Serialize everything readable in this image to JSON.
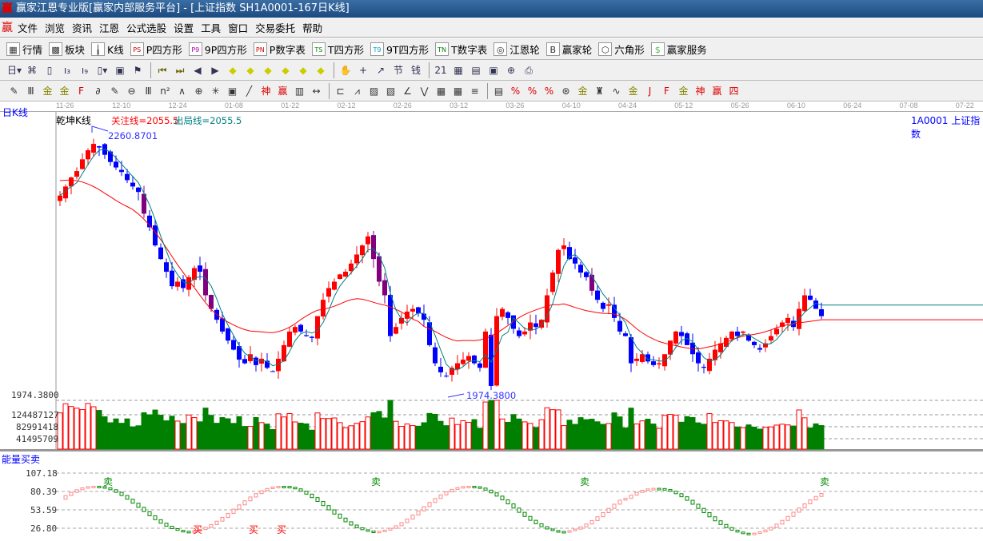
{
  "window": {
    "title": "赢家江恩专业版[赢家内部服务平台] - [上证指数  SH1A0001-167日K线]",
    "logo": "赢"
  },
  "menu": [
    "文件",
    "浏览",
    "资讯",
    "江恩",
    "公式选股",
    "设置",
    "工具",
    "窗口",
    "交易委托",
    "帮助"
  ],
  "toolbar1": [
    {
      "icon": "quote-table-icon",
      "g": "▦",
      "label": "行情"
    },
    {
      "icon": "sector-blocks-icon",
      "g": "▩",
      "label": "板块"
    },
    {
      "icon": "kline-icon",
      "g": "╽",
      "label": "K线"
    },
    {
      "icon": "ps-icon",
      "g": "PS",
      "label": "P四方形"
    },
    {
      "icon": "p9-icon",
      "g": "P9",
      "label": "9P四方形"
    },
    {
      "icon": "pn-icon",
      "g": "PN",
      "label": "P数字表"
    },
    {
      "icon": "ts-icon",
      "g": "TS",
      "label": "T四方形"
    },
    {
      "icon": "t9-icon",
      "g": "T9",
      "label": "9T四方形"
    },
    {
      "icon": "tn-icon",
      "g": "TN",
      "label": "T数字表"
    },
    {
      "icon": "gann-wheel-icon",
      "g": "◎",
      "label": "江恩轮"
    },
    {
      "icon": "big-wheel-icon",
      "g": "B",
      "label": "赢家轮"
    },
    {
      "icon": "hexagon-icon",
      "g": "⬡",
      "label": "六角形"
    },
    {
      "icon": "dollar-icon",
      "g": "$",
      "label": "赢家服务"
    }
  ],
  "toolbar2": [
    {
      "icon": "period-day-dropdown",
      "g": "日▾"
    },
    {
      "icon": "chart-icon",
      "g": "⌘"
    },
    {
      "icon": "clipboard-icon",
      "g": "▯"
    },
    {
      "icon": "indicator-3-icon",
      "g": "ı₃"
    },
    {
      "icon": "indicator-9-icon",
      "g": "ı₉"
    },
    {
      "icon": "candle-type-dropdown",
      "g": "▯▾"
    },
    {
      "icon": "map-icon",
      "g": "▣"
    },
    {
      "icon": "flag-icon",
      "g": "⚑"
    },
    {
      "icon": "first-icon",
      "g": "⏮"
    },
    {
      "icon": "last-icon",
      "g": "⏭"
    },
    {
      "icon": "prev-icon",
      "g": "◀"
    },
    {
      "icon": "next-icon",
      "g": "▶"
    },
    {
      "icon": "left-diamond-icon",
      "g": "◆"
    },
    {
      "icon": "right-diamond-icon",
      "g": "◆"
    },
    {
      "icon": "expand-h-icon",
      "g": "◆"
    },
    {
      "icon": "shrink-icon",
      "g": "◆"
    },
    {
      "icon": "expand-icon",
      "g": "◆"
    },
    {
      "icon": "expand-v-icon",
      "g": "◆"
    },
    {
      "icon": "hand-icon",
      "g": "✋"
    },
    {
      "icon": "crosshair-icon",
      "g": "+"
    },
    {
      "icon": "line-icon",
      "g": "↗"
    },
    {
      "icon": "pattern-icon",
      "g": "节"
    },
    {
      "icon": "money-icon",
      "g": "钱"
    },
    {
      "icon": "calendar-icon",
      "g": "21"
    },
    {
      "icon": "calculator-icon",
      "g": "▦"
    },
    {
      "icon": "notes-icon",
      "g": "▤"
    },
    {
      "icon": "save-icon",
      "g": "▣"
    },
    {
      "icon": "network-icon",
      "g": "⊕"
    },
    {
      "icon": "print-icon",
      "g": "⎙"
    }
  ],
  "toolbar3": [
    "pen-icon",
    "three-lines-icon",
    "gold-icon",
    "gold2-icon",
    "fib-icon",
    "spiral-icon",
    "pen2-icon",
    "circle-icon",
    "lines-icon",
    "n2-icon",
    "triangle-icon",
    "target-icon",
    "web-icon",
    "box-icon",
    "parallel-icon",
    "shen-icon",
    "ying-icon",
    "ruler-icon",
    "span-icon",
    "box2-icon",
    "fan-icon",
    "fan2-icon",
    "fan3-icon",
    "angle-icon",
    "zigzag-icon",
    "grid-icon",
    "grid2-icon",
    "hatch-icon",
    "bars-icon",
    "pct-line-icon",
    "percent-icon",
    "pct-lines-icon",
    "gold-circle-icon",
    "gold-lines-icon",
    "pen3-icon",
    "wave-icon",
    "gold3-icon",
    "j-angle-icon",
    "f-angle-icon",
    "gold-angle-icon",
    "shen-angle-icon",
    "ying-angle-icon",
    "si-angle-icon"
  ],
  "dates": [
    "11-26",
    "12-10",
    "12-24",
    "01-08",
    "01-22",
    "02-12",
    "02-26",
    "03-12",
    "03-26",
    "04-10",
    "04-24",
    "05-12",
    "05-26",
    "06-10",
    "06-24",
    "07-08",
    "07-22"
  ],
  "chart": {
    "period_label": "日K线",
    "indicator_name": "乾坤K线",
    "focus_line": "关注线=2055.5",
    "exit_line": "出局线=2055.5",
    "symbol": "1A0001  上证指数",
    "high_label": "2260.8701",
    "low_label": "1974.3800",
    "high": 2260.87,
    "low": 1974.38,
    "axis_price": "1974.3800",
    "vol_ticks": [
      "124487127",
      "82991418",
      "41495709"
    ],
    "closes": [
      2195,
      2205,
      2215,
      2222,
      2235,
      2245,
      2252,
      2248,
      2240,
      2232,
      2226,
      2221,
      2212,
      2205,
      2199,
      2175,
      2160,
      2140,
      2125,
      2111,
      2095,
      2100,
      2093,
      2105,
      2115,
      2111,
      2085,
      2070,
      2058,
      2045,
      2035,
      2025,
      2014,
      2010,
      2020,
      2008,
      2015,
      2005,
      2001,
      2015,
      2030,
      2045,
      2050,
      2045,
      2040,
      2038,
      2062,
      2080,
      2093,
      2100,
      2108,
      2111,
      2120,
      2130,
      2140,
      2150,
      2125,
      2100,
      2085,
      2040,
      2050,
      2060,
      2067,
      2070,
      2065,
      2058,
      2030,
      2010,
      2000,
      1996,
      2005,
      2010,
      2014,
      2018,
      2010,
      2005,
      2045,
      1985,
      2062,
      2070,
      2060,
      2048,
      2040,
      2045,
      2055,
      2050,
      2058,
      2085,
      2110,
      2135,
      2140,
      2125,
      2120,
      2110,
      2105,
      2090,
      2080,
      2070,
      2075,
      2060,
      2045,
      2040,
      2010,
      2015,
      2020,
      2012,
      2008,
      2010,
      2020,
      2035,
      2045,
      2040,
      2030,
      2020,
      2010,
      2005,
      2015,
      2025,
      2032,
      2038,
      2045,
      2040,
      2045,
      2035,
      2030,
      2025,
      2032,
      2040,
      2048,
      2055,
      2060,
      2050,
      2070,
      2085,
      2080,
      2070,
      2062
    ],
    "colors": {
      "up": "#ff0000",
      "down": "#0000ff",
      "down_alt": "#800080",
      "vol_down": "#008000",
      "ma_fast": "#008080",
      "ma_slow": "#ff0000"
    }
  },
  "energy": {
    "title": "能量买卖",
    "ticks": [
      "107.18",
      "80.39",
      "53.59",
      "26.80"
    ],
    "sell": "卖",
    "buy": "买"
  }
}
